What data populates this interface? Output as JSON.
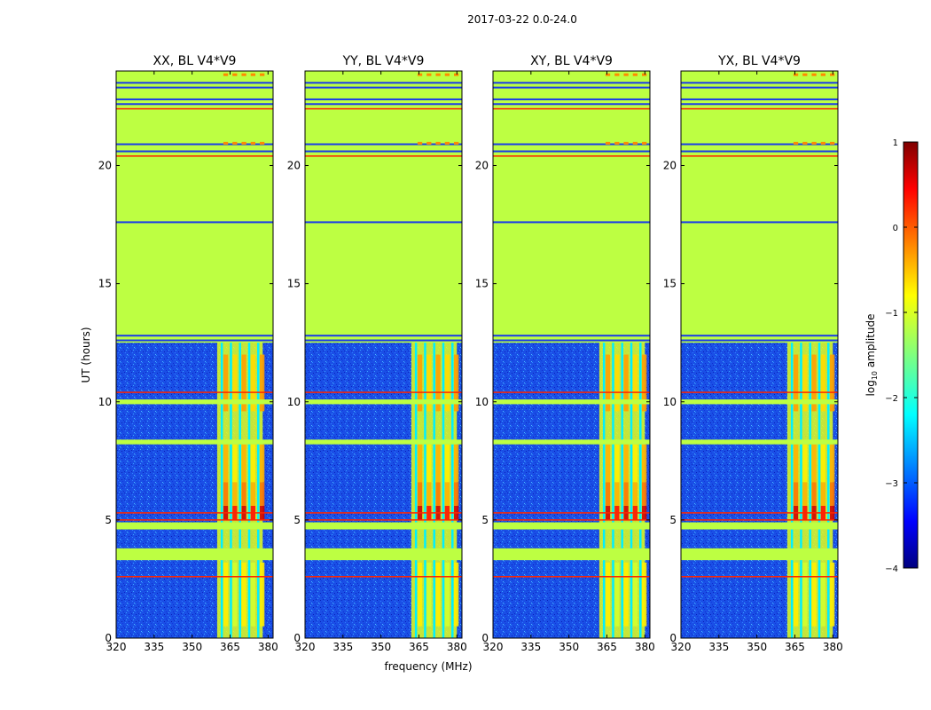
{
  "chart_data": {
    "type": "heatmap",
    "suptitle": "2017-03-22 0.0-24.0",
    "xlabel": "frequency (MHz)",
    "ylabel": "UT (hours)",
    "xlim": [
      320,
      382
    ],
    "ylim": [
      0,
      24
    ],
    "xticks": [
      320,
      335,
      350,
      365,
      380
    ],
    "yticks": [
      0,
      5,
      10,
      15,
      20
    ],
    "panels": [
      {
        "title": "XX, BL V4*V9"
      },
      {
        "title": "YY, BL V4*V9"
      },
      {
        "title": "XY, BL V4*V9"
      },
      {
        "title": "YX, BL V4*V9"
      }
    ],
    "colorbar": {
      "label_main": "log",
      "label_sub": "10",
      "label_rest": " amplitude",
      "range": [
        -4,
        1
      ],
      "ticks": [
        1,
        0,
        -1,
        -2,
        -3,
        -4
      ],
      "tick_labels": [
        "1",
        "0",
        "−1",
        "−2",
        "−3",
        "−4"
      ],
      "colormap": "jet"
    },
    "features": {
      "flagged_value": -1.2,
      "flagged_spans_hours": [
        [
          3.3,
          3.8
        ],
        [
          4.6,
          4.9
        ],
        [
          8.2,
          8.4
        ],
        [
          9.9,
          10.1
        ],
        [
          12.5,
          24.0
        ]
      ],
      "rfi_lines_hours": [
        2.6,
        5.0,
        5.3,
        10.4,
        20.4,
        22.4
      ],
      "band_MHz": [
        362,
        380
      ],
      "background_level": -3.0
    }
  }
}
